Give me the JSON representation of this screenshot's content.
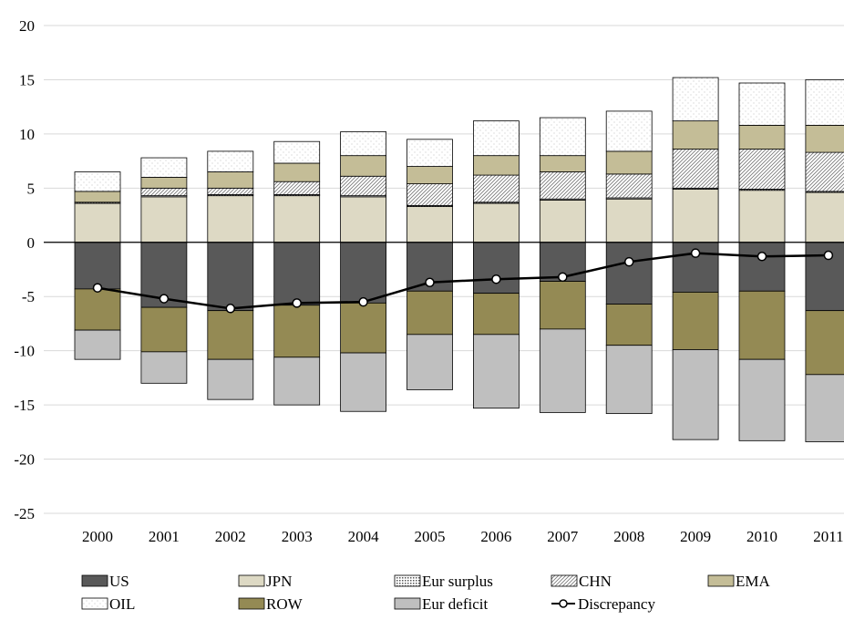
{
  "chart_data": {
    "type": "bar",
    "stacked": true,
    "categories": [
      "2000",
      "2001",
      "2002",
      "2003",
      "2004",
      "2005",
      "2006",
      "2007",
      "2008",
      "2009",
      "2010",
      "2011"
    ],
    "ylim": [
      -25,
      20
    ],
    "yticks": [
      -25,
      -20,
      -15,
      -10,
      -5,
      0,
      5,
      10,
      15,
      20
    ],
    "ytick_labels": [
      "-25",
      "-20",
      "-15",
      "-10",
      "-5",
      "0",
      "5",
      "10",
      "15",
      "20"
    ],
    "grid": "horizontal",
    "legend_position": "bottom",
    "series": [
      {
        "name": "US",
        "color": "#595959",
        "pattern": "solid",
        "values": [
          -4.3,
          -6.0,
          -6.3,
          -5.8,
          -5.6,
          -4.5,
          -4.7,
          -3.6,
          -5.7,
          -4.6,
          -4.5,
          -6.3
        ]
      },
      {
        "name": "JPN",
        "color": "#ddd9c4",
        "pattern": "solid",
        "values": [
          3.6,
          4.2,
          4.3,
          4.3,
          4.2,
          3.3,
          3.6,
          3.9,
          4.0,
          4.9,
          4.8,
          4.6
        ]
      },
      {
        "name": "Eur surplus",
        "color": "#ffffff",
        "pattern": "dots",
        "values": [
          0.1,
          0.1,
          0.1,
          0.1,
          0.1,
          0.1,
          0.1,
          0.1,
          0.1,
          0.1,
          0.1,
          0.1
        ]
      },
      {
        "name": "CHN",
        "color": "#ffffff",
        "pattern": "hatch",
        "values": [
          0.0,
          0.7,
          0.6,
          1.2,
          1.8,
          2.0,
          2.5,
          2.5,
          2.2,
          3.6,
          3.7,
          3.6
        ]
      },
      {
        "name": "EMA",
        "color": "#c4bd97",
        "pattern": "solid",
        "values": [
          1.0,
          1.0,
          1.5,
          1.7,
          1.9,
          1.6,
          1.8,
          1.5,
          2.1,
          2.6,
          2.2,
          2.5
        ]
      },
      {
        "name": "OIL",
        "color": "#ffffff",
        "pattern": "dotted-white",
        "values": [
          1.8,
          1.8,
          1.9,
          2.0,
          2.2,
          2.5,
          3.2,
          3.5,
          3.7,
          4.0,
          3.9,
          4.2
        ]
      },
      {
        "name": "ROW",
        "color": "#948a54",
        "pattern": "solid",
        "values": [
          -3.8,
          -4.1,
          -4.5,
          -4.8,
          -4.6,
          -4.0,
          -3.8,
          -4.4,
          -3.8,
          -5.3,
          -6.3,
          -5.9
        ]
      },
      {
        "name": "Eur deficit",
        "color": "#bfbfbf",
        "pattern": "solid",
        "values": [
          -2.7,
          -2.9,
          -3.7,
          -4.4,
          -5.4,
          -5.1,
          -6.8,
          -7.7,
          -6.3,
          -8.3,
          -7.5,
          -6.2
        ]
      }
    ],
    "line_series": {
      "name": "Discrepancy",
      "color": "#000000",
      "values": [
        -4.2,
        -5.2,
        -6.1,
        -5.6,
        -5.5,
        -3.7,
        -3.4,
        -3.2,
        -1.8,
        -1.0,
        -1.3,
        -1.2
      ]
    }
  }
}
